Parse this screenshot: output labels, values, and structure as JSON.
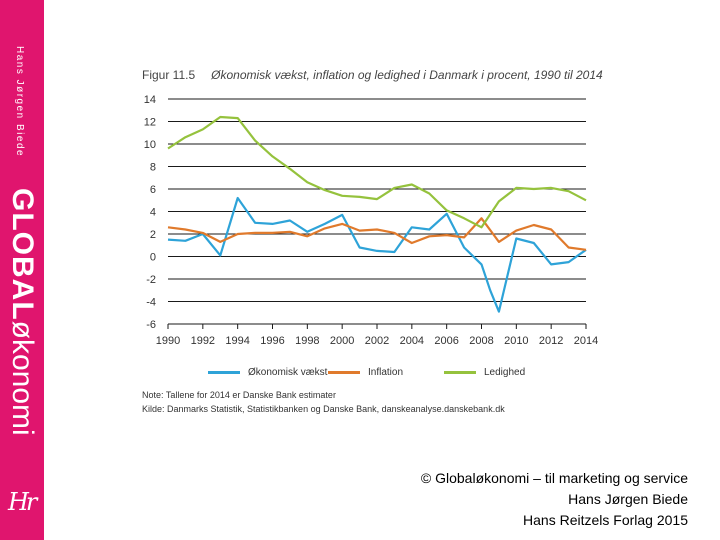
{
  "sidebar": {
    "author": "Hans Jørgen Biede",
    "brand_bold": "GLOBAL",
    "brand_light": "økonomi",
    "logo": "Hr"
  },
  "figure": {
    "label": "Figur 11.5",
    "title": "Økonomisk vækst, inflation og ledighed i Danmark i procent, 1990 til 2014",
    "note": "Note: Tallene for 2014 er Danske Bank estimater",
    "source": "Kilde: Danmarks Statistik, Statistikbanken og Danske Bank, danskeanalyse.danskebank.dk"
  },
  "chart_data": {
    "type": "line",
    "title": "Figur 11.5 Økonomisk vækst, inflation og ledighed i Danmark i procent, 1990 til 2014",
    "xlabel": "",
    "ylabel": "",
    "xlim": [
      1990,
      2014
    ],
    "ylim": [
      -6,
      14
    ],
    "x_ticks": [
      1990,
      1992,
      1994,
      1996,
      1998,
      2000,
      2002,
      2004,
      2006,
      2008,
      2010,
      2012,
      2014
    ],
    "y_ticks": [
      -6,
      -4,
      -2,
      0,
      2,
      4,
      6,
      8,
      10,
      12,
      14
    ],
    "x_tick_labels": [
      "1990",
      "1992",
      "1994",
      "1996",
      "1998",
      "2000",
      "2002",
      "2004",
      "2006",
      "2008",
      "2010",
      "2012",
      "2014"
    ],
    "y_tick_labels": [
      "-6",
      "-4",
      "-2",
      "0",
      "2",
      "4",
      "6",
      "8",
      "10",
      "12",
      "14"
    ],
    "grid": "horizontal",
    "legend_position": "bottom",
    "series": [
      {
        "name": "Økonomisk vækst",
        "color": "#2ea3d8",
        "x": [
          1990,
          1991,
          1992,
          1993,
          1994,
          1995,
          1996,
          1997,
          1998,
          1999,
          2000,
          2001,
          2002,
          2003,
          2004,
          2005,
          2006,
          2007,
          2008,
          2008.5,
          2009,
          2010,
          2011,
          2012,
          2013,
          2014
        ],
        "values": [
          1.5,
          1.4,
          2.0,
          0.1,
          5.2,
          3.0,
          2.9,
          3.2,
          2.2,
          2.9,
          3.7,
          0.8,
          0.5,
          0.4,
          2.6,
          2.4,
          3.8,
          0.8,
          -0.7,
          -3.0,
          -4.9,
          1.6,
          1.2,
          -0.7,
          -0.5,
          0.6
        ]
      },
      {
        "name": "Inflation",
        "color": "#e07a2c",
        "x": [
          1990,
          1991,
          1992,
          1993,
          1994,
          1995,
          1996,
          1997,
          1998,
          1999,
          2000,
          2001,
          2002,
          2003,
          2004,
          2005,
          2006,
          2007,
          2008,
          2009,
          2010,
          2011,
          2012,
          2013,
          2014
        ],
        "values": [
          2.6,
          2.4,
          2.1,
          1.3,
          2.0,
          2.1,
          2.1,
          2.2,
          1.8,
          2.5,
          2.9,
          2.3,
          2.4,
          2.1,
          1.2,
          1.8,
          1.9,
          1.7,
          3.4,
          1.3,
          2.3,
          2.8,
          2.4,
          0.8,
          0.6
        ]
      },
      {
        "name": "Ledighed",
        "color": "#95c23d",
        "x": [
          1990,
          1991,
          1992,
          1993,
          1994,
          1995,
          1996,
          1997,
          1998,
          1999,
          2000,
          2001,
          2002,
          2003,
          2004,
          2005,
          2006,
          2007,
          2008,
          2009,
          2010,
          2011,
          2012,
          2013,
          2014
        ],
        "values": [
          9.6,
          10.6,
          11.3,
          12.4,
          12.3,
          10.3,
          8.9,
          7.8,
          6.6,
          5.9,
          5.4,
          5.3,
          5.1,
          6.1,
          6.4,
          5.6,
          4.1,
          3.4,
          2.6,
          4.9,
          6.1,
          6.0,
          6.1,
          5.8,
          5.0
        ]
      }
    ]
  },
  "copyright": {
    "line1": "© Globaløkonomi – til marketing og service",
    "line2": "Hans Jørgen Biede",
    "line3": "Hans Reitzels Forlag 2015"
  }
}
